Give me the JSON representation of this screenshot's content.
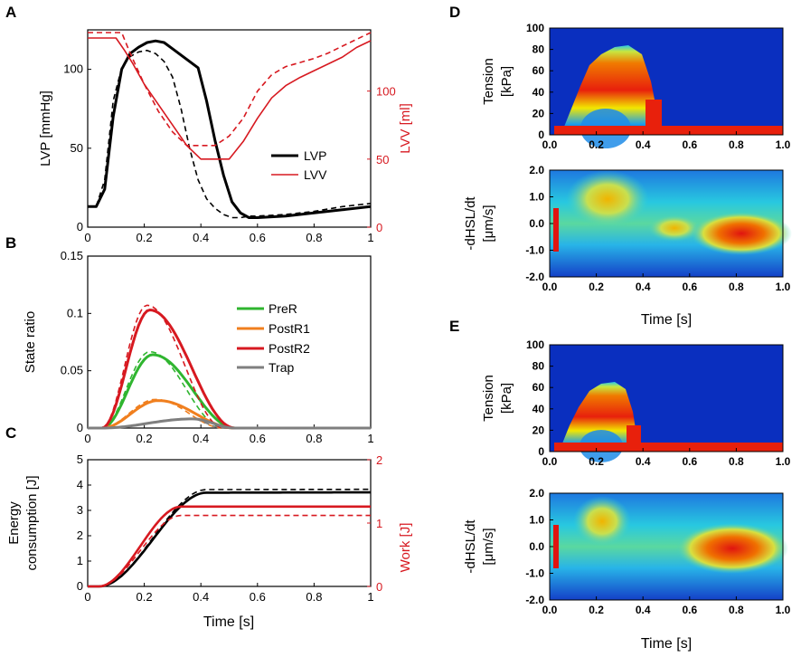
{
  "colors": {
    "black": "#000000",
    "red": "#d71920",
    "green": "#2fb52f",
    "orange": "#f07f1e",
    "gray": "#7f7f7f",
    "hm_bg": "#0a2fbf"
  },
  "chart_data": [
    {
      "panel": "A",
      "type": "line",
      "ylabel": "LVP [mmHg]",
      "y2label": "LVV [ml]",
      "xlim": [
        0,
        1
      ],
      "ylim": [
        0,
        125
      ],
      "y2lim": [
        0,
        145
      ],
      "xticks": [
        "0",
        "0.2",
        "0.4",
        "0.6",
        "0.8",
        "1"
      ],
      "yticks": [
        "0",
        "50",
        "100"
      ],
      "y2ticks": [
        "0",
        "50",
        "100"
      ],
      "legend": [
        "LVP",
        "LVV"
      ],
      "series": [
        {
          "name": "LVP",
          "axis": "left",
          "style": "solid",
          "color": "#000000",
          "x": [
            0,
            0.03,
            0.06,
            0.09,
            0.12,
            0.15,
            0.18,
            0.21,
            0.24,
            0.27,
            0.3,
            0.33,
            0.36,
            0.39,
            0.42,
            0.45,
            0.48,
            0.51,
            0.54,
            0.57,
            0.6,
            0.7,
            0.8,
            0.9,
            1.0
          ],
          "y": [
            13,
            13,
            24,
            70,
            100,
            110,
            114,
            117,
            118,
            117,
            113,
            109,
            105,
            101,
            80,
            55,
            33,
            16,
            9,
            6,
            6,
            7,
            9,
            11,
            13
          ]
        },
        {
          "name": "LVP (alt)",
          "axis": "left",
          "style": "dashed",
          "color": "#000000",
          "x": [
            0,
            0.03,
            0.06,
            0.09,
            0.12,
            0.15,
            0.18,
            0.21,
            0.24,
            0.27,
            0.3,
            0.33,
            0.36,
            0.39,
            0.42,
            0.45,
            0.48,
            0.51,
            0.54,
            0.57,
            0.6,
            0.7,
            0.8,
            0.9,
            1.0
          ],
          "y": [
            13,
            13,
            30,
            80,
            101,
            108,
            111,
            112,
            110,
            105,
            95,
            75,
            50,
            30,
            18,
            12,
            8,
            6,
            6,
            7,
            7,
            8,
            10,
            13,
            15
          ]
        },
        {
          "name": "LVV",
          "axis": "right",
          "style": "solid",
          "color": "#d71920",
          "x": [
            0,
            0.1,
            0.13,
            0.16,
            0.2,
            0.25,
            0.3,
            0.35,
            0.4,
            0.45,
            0.5,
            0.55,
            0.6,
            0.65,
            0.7,
            0.75,
            0.8,
            0.85,
            0.9,
            0.95,
            1.0
          ],
          "y": [
            139,
            139,
            130,
            120,
            105,
            90,
            75,
            60,
            50,
            50,
            50,
            63,
            80,
            95,
            104,
            110,
            115,
            120,
            125,
            132,
            137
          ]
        },
        {
          "name": "LVV (alt)",
          "axis": "right",
          "style": "dashed",
          "color": "#d71920",
          "x": [
            0,
            0.12,
            0.15,
            0.2,
            0.25,
            0.3,
            0.35,
            0.4,
            0.45,
            0.5,
            0.55,
            0.6,
            0.65,
            0.7,
            0.75,
            0.8,
            0.85,
            0.9,
            0.95,
            1.0
          ],
          "y": [
            143,
            143,
            128,
            105,
            85,
            70,
            60,
            60,
            60,
            67,
            80,
            100,
            112,
            118,
            121,
            124,
            128,
            133,
            138,
            143
          ]
        }
      ]
    },
    {
      "panel": "B",
      "type": "line",
      "ylabel": "State ratio",
      "xlim": [
        0,
        1
      ],
      "ylim": [
        0,
        0.15
      ],
      "xticks": [
        "0",
        "0.2",
        "0.4",
        "0.6",
        "0.8",
        "1"
      ],
      "yticks": [
        "0",
        "0.05",
        "0.1",
        "0.15"
      ],
      "legend": [
        "PreR",
        "PostR1",
        "PostR2",
        "Trap"
      ],
      "series": [
        {
          "name": "PreR",
          "peak": 0.064,
          "peak_x": 0.23,
          "color": "#2fb52f"
        },
        {
          "name": "PostR1",
          "peak": 0.024,
          "peak_x": 0.25,
          "color": "#f07f1e"
        },
        {
          "name": "PostR2",
          "peak": 0.103,
          "peak_x": 0.22,
          "color": "#d71920"
        },
        {
          "name": "Trap",
          "peak": 0.008,
          "peak_x": 0.37,
          "color": "#7f7f7f"
        }
      ]
    },
    {
      "panel": "C",
      "type": "line",
      "ylabel": "Energy consumption [J]",
      "y2label": "Work [J]",
      "xlabel": "Time [s]",
      "xlim": [
        0,
        1
      ],
      "ylim": [
        0,
        5
      ],
      "y2lim": [
        0,
        2
      ],
      "xticks": [
        "0",
        "0.2",
        "0.4",
        "0.6",
        "0.8",
        "1"
      ],
      "yticks": [
        "0",
        "1",
        "2",
        "3",
        "4",
        "5"
      ],
      "y2ticks": [
        "0",
        "1",
        "2"
      ],
      "series": [
        {
          "name": "Energy consumption",
          "final": 3.7,
          "color": "#000000"
        },
        {
          "name": "Energy consumption (alt)",
          "final": 3.82,
          "color": "#000000"
        },
        {
          "name": "Work",
          "final": 1.26,
          "color": "#d71920"
        },
        {
          "name": "Work (alt)",
          "final": 1.12,
          "color": "#d71920"
        }
      ]
    },
    {
      "panel": "D",
      "type": "heatmap",
      "xlabel": "Time [s]",
      "xticks": [
        "0.0",
        "0.2",
        "0.4",
        "0.6",
        "0.8",
        "1.0"
      ],
      "top": {
        "ylabel": "Tension [kPa]",
        "yticks": [
          "100",
          "80",
          "60",
          "40",
          "20",
          "0"
        ],
        "ylim": [
          0,
          100
        ]
      },
      "bottom": {
        "ylabel": "-dHSL/dt [μm/s]",
        "yticks": [
          "2.0",
          "1.0",
          "0.0",
          "-1.0",
          "-2.0"
        ],
        "ylim": [
          -2,
          2
        ]
      }
    },
    {
      "panel": "E",
      "type": "heatmap",
      "xlabel": "Time [s]",
      "xticks": [
        "0.0",
        "0.2",
        "0.4",
        "0.6",
        "0.8",
        "1.0"
      ],
      "top": {
        "ylabel": "Tension [kPa]",
        "yticks": [
          "100",
          "80",
          "60",
          "40",
          "20",
          "0"
        ],
        "ylim": [
          0,
          100
        ]
      },
      "bottom": {
        "ylabel": "-dHSL/dt [μm/s]",
        "yticks": [
          "2.0",
          "1.0",
          "0.0",
          "-1.0",
          "-2.0"
        ],
        "ylim": [
          -2,
          2
        ]
      }
    }
  ]
}
